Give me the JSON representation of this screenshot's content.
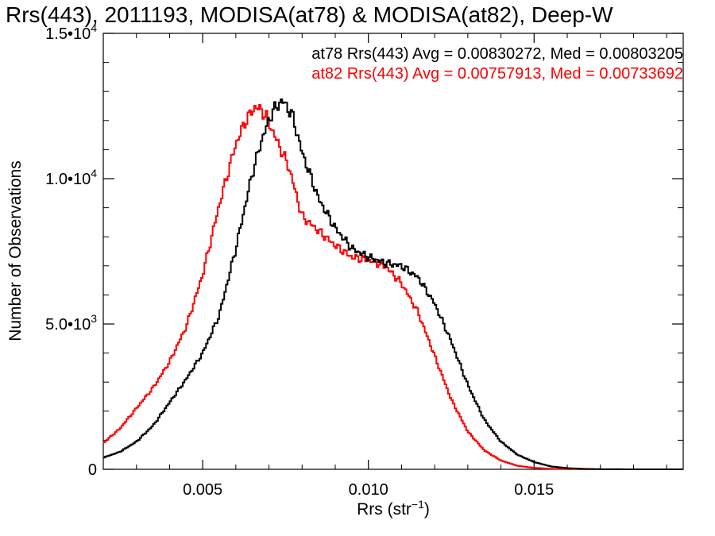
{
  "chart_data": {
    "type": "line",
    "style": "step-histogram",
    "title": "Rrs(443), 2011193, MODISA(at78) & MODISA(at82), Deep-W",
    "xlabel_base": "Rrs (str",
    "xlabel_sup": "−1",
    "xlabel_end": ")",
    "ylabel": "Number of Observations",
    "xlim": [
      0.002,
      0.0195
    ],
    "ylim": [
      0,
      15000
    ],
    "x_ticks": [
      {
        "value": 0.005,
        "label": "0.005"
      },
      {
        "value": 0.01,
        "label": "0.010"
      },
      {
        "value": 0.015,
        "label": "0.015"
      }
    ],
    "y_ticks": [
      {
        "value": 0,
        "mant": "0",
        "exp": ""
      },
      {
        "value": 5000,
        "mant": "5.0•10",
        "exp": "3"
      },
      {
        "value": 10000,
        "mant": "1.0•10",
        "exp": "4"
      },
      {
        "value": 15000,
        "mant": "1.5•10",
        "exp": "4"
      }
    ],
    "legend_position": "top-right",
    "series": [
      {
        "name": "at78",
        "color": "#000000",
        "stats": "at78 Rrs(443) Avg = 0.00830272, Med = 0.00803205",
        "points": [
          [
            0.002,
            400
          ],
          [
            0.0025,
            600
          ],
          [
            0.003,
            950
          ],
          [
            0.0035,
            1500
          ],
          [
            0.004,
            2300
          ],
          [
            0.0045,
            3100
          ],
          [
            0.005,
            4000
          ],
          [
            0.0055,
            5300
          ],
          [
            0.006,
            7600
          ],
          [
            0.0065,
            10200
          ],
          [
            0.0068,
            11400
          ],
          [
            0.0071,
            12300
          ],
          [
            0.0074,
            12700
          ],
          [
            0.0077,
            12200
          ],
          [
            0.008,
            10900
          ],
          [
            0.0085,
            9300
          ],
          [
            0.009,
            8300
          ],
          [
            0.0095,
            7600
          ],
          [
            0.01,
            7300
          ],
          [
            0.0105,
            7100
          ],
          [
            0.011,
            7000
          ],
          [
            0.0115,
            6600
          ],
          [
            0.012,
            5700
          ],
          [
            0.0125,
            4400
          ],
          [
            0.013,
            2900
          ],
          [
            0.0135,
            1700
          ],
          [
            0.014,
            950
          ],
          [
            0.0145,
            500
          ],
          [
            0.015,
            250
          ],
          [
            0.0155,
            100
          ],
          [
            0.016,
            40
          ],
          [
            0.0165,
            15
          ],
          [
            0.017,
            5
          ],
          [
            0.018,
            0
          ],
          [
            0.0195,
            0
          ]
        ]
      },
      {
        "name": "at82",
        "color": "#ff0000",
        "stats": "at82 Rrs(443) Avg = 0.00757913, Med = 0.00733692",
        "points": [
          [
            0.002,
            900
          ],
          [
            0.0025,
            1400
          ],
          [
            0.003,
            2100
          ],
          [
            0.0035,
            2800
          ],
          [
            0.004,
            3700
          ],
          [
            0.0045,
            4900
          ],
          [
            0.005,
            6700
          ],
          [
            0.0055,
            9100
          ],
          [
            0.006,
            11200
          ],
          [
            0.0063,
            12000
          ],
          [
            0.0066,
            12500
          ],
          [
            0.0069,
            12200
          ],
          [
            0.0072,
            11400
          ],
          [
            0.0076,
            10400
          ],
          [
            0.008,
            8700
          ],
          [
            0.0085,
            8200
          ],
          [
            0.009,
            7700
          ],
          [
            0.0095,
            7300
          ],
          [
            0.01,
            7200
          ],
          [
            0.0105,
            7000
          ],
          [
            0.011,
            6400
          ],
          [
            0.0115,
            5400
          ],
          [
            0.012,
            3900
          ],
          [
            0.0125,
            2400
          ],
          [
            0.013,
            1300
          ],
          [
            0.0135,
            650
          ],
          [
            0.014,
            300
          ],
          [
            0.0145,
            120
          ],
          [
            0.015,
            50
          ],
          [
            0.0155,
            20
          ],
          [
            0.016,
            8
          ],
          [
            0.017,
            0
          ],
          [
            0.0195,
            0
          ]
        ]
      }
    ]
  }
}
